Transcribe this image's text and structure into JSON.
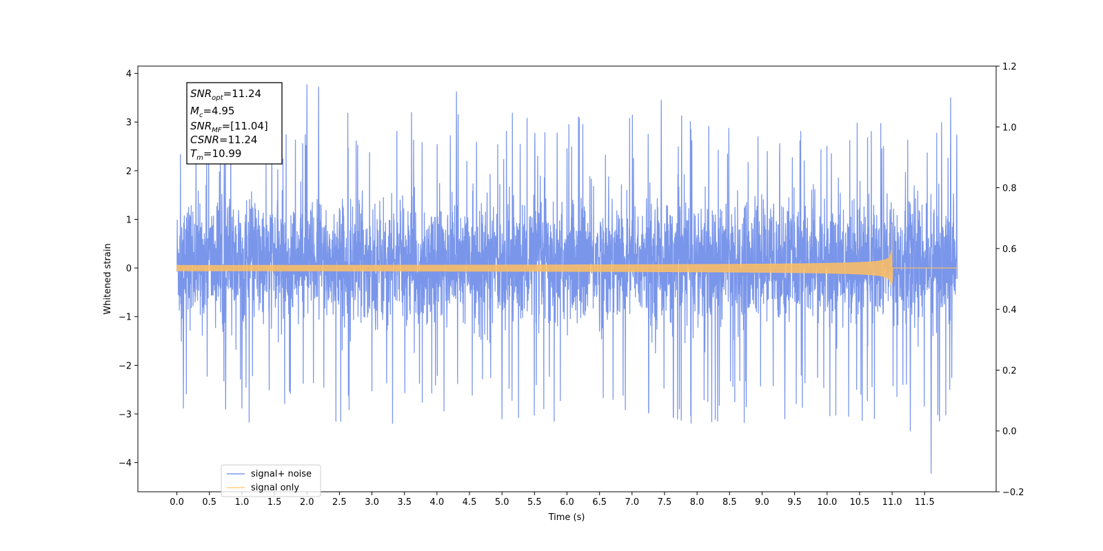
{
  "chart_data": {
    "type": "line",
    "xlabel": "Time (s)",
    "ylabel": "Whitened strain",
    "xlim": [
      -0.6,
      12.6
    ],
    "ylim": [
      -4.6,
      4.15
    ],
    "y2lim": [
      -0.2,
      1.2
    ],
    "grid": false,
    "x_ticks": [
      0.0,
      0.5,
      1.0,
      1.5,
      2.0,
      2.5,
      3.0,
      3.5,
      4.0,
      4.5,
      5.0,
      5.5,
      6.0,
      6.5,
      7.0,
      7.5,
      8.0,
      8.5,
      9.0,
      9.5,
      10.0,
      10.5,
      11.0,
      11.5
    ],
    "x_tick_labels": [
      "0.0",
      "0.5",
      "1.0",
      "1.5",
      "2.0",
      "2.5",
      "3.0",
      "3.5",
      "4.0",
      "4.5",
      "5.0",
      "5.5",
      "6.0",
      "6.5",
      "7.0",
      "7.5",
      "8.0",
      "8.5",
      "9.0",
      "9.5",
      "10.0",
      "10.5",
      "11.0",
      "11.5"
    ],
    "y_ticks": [
      -4,
      -3,
      -2,
      -1,
      0,
      1,
      2,
      3,
      4
    ],
    "y_tick_labels": [
      "−4",
      "−3",
      "−2",
      "−1",
      "0",
      "1",
      "2",
      "3",
      "4"
    ],
    "y2_ticks": [
      -0.2,
      0.0,
      0.2,
      0.4,
      0.6,
      0.8,
      1.0,
      1.2
    ],
    "y2_tick_labels": [
      "−0.2",
      "0.0",
      "0.2",
      "0.4",
      "0.6",
      "0.8",
      "1.0",
      "1.2"
    ],
    "legend_position": "lower-left",
    "series": [
      {
        "name": "signal+ noise",
        "color": "#4169E1",
        "x_range": [
          0.0,
          12.0
        ],
        "typical_band": [
          -1.7,
          2.0
        ],
        "extremes": [
          3.77,
          -4.22
        ],
        "peaks": [
          [
            2.0,
            3.77
          ],
          [
            2.18,
            3.72
          ],
          [
            4.3,
            3.62
          ],
          [
            7.45,
            3.45
          ],
          [
            11.9,
            3.5
          ],
          [
            11.6,
            -4.22
          ],
          [
            11.28,
            -3.35
          ],
          [
            5.0,
            -3.1
          ],
          [
            9.35,
            -3.1
          ],
          [
            0.1,
            -2.88
          ],
          [
            0.75,
            -2.9
          ],
          [
            1.0,
            -2.88
          ]
        ]
      },
      {
        "name": "signal only",
        "color": "#FFC060",
        "x_range": [
          0.0,
          12.0
        ],
        "merger_time": 10.99,
        "merger_amplitude_top": 0.9,
        "merger_amplitude_bottom": -1.15,
        "start_amplitude": 0.05
      }
    ]
  },
  "annotation": {
    "snr_opt_sym": "SNR",
    "snr_opt_sub": "opt",
    "snr_opt_val": "=11.24",
    "mc_sym": "M",
    "mc_sub": "c",
    "mc_val": "=4.95",
    "snr_mf_sym": "SNR",
    "snr_mf_sub": "MF",
    "snr_mf_val": "=[11.04]",
    "csnr_sym": "CSNR",
    "csnr_val": "=11.24",
    "tm_sym": "T",
    "tm_sub": "m",
    "tm_val": "=10.99"
  }
}
